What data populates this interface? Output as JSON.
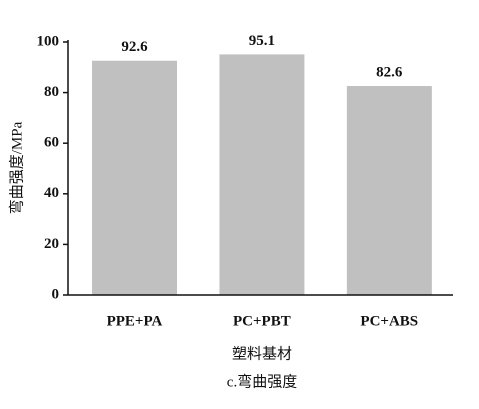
{
  "chart_data": {
    "type": "bar",
    "caption": "c.弯曲强度",
    "x_label": "塑料基材",
    "y_label": "弯曲强度/MPa",
    "categories": [
      "PPE+PA",
      "PC+PBT",
      "PC+ABS"
    ],
    "values": [
      92.6,
      95.1,
      82.6
    ],
    "color": "#c0c0c0",
    "ylim": [
      0,
      100
    ],
    "yticks": [
      0,
      20,
      40,
      60,
      80,
      100
    ]
  }
}
